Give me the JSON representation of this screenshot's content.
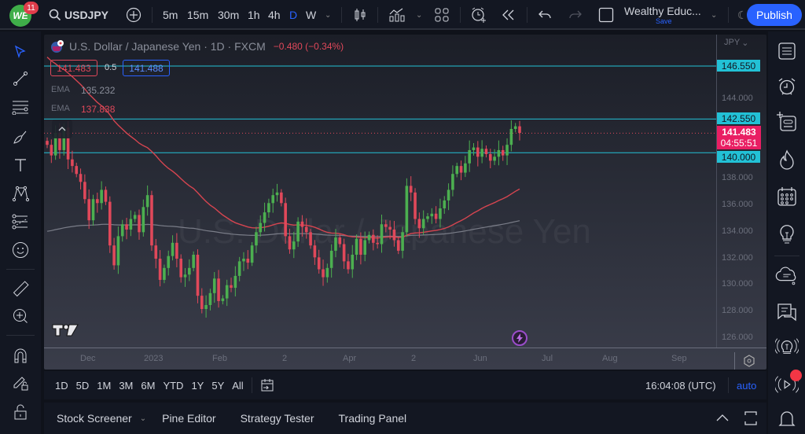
{
  "topbar": {
    "notification_count": "11",
    "logo_text": "WE",
    "symbol": "USDJPY",
    "intervals": [
      "5m",
      "15m",
      "30m",
      "1h",
      "4h",
      "D",
      "W"
    ],
    "active_interval": "D",
    "layout_name": "Wealthy Educ...",
    "save_label": "Save",
    "publish_label": "Publish"
  },
  "legend": {
    "title": "U.S. Dollar / Japanese Yen · 1D · FXCM",
    "change": "−0.480 (−0.34%)",
    "bid": "141.483",
    "spread": "0.5",
    "ask": "141.488",
    "ema1_label": "EMA",
    "ema1_value": "135.232",
    "ema2_label": "EMA",
    "ema2_value": "137.838"
  },
  "watermark": "U.S. Dollar / Japanese Yen",
  "price_axis": {
    "currency": "JPY",
    "labels": [
      "144.000",
      "138.000",
      "136.000",
      "134.000",
      "132.000",
      "130.000",
      "128.000",
      "126.000"
    ],
    "tags": {
      "level1": "146.550",
      "level2": "142.550",
      "level3": "140.000",
      "last_price": "141.483",
      "countdown": "04:55:51"
    }
  },
  "time_axis": {
    "labels": [
      "Dec",
      "2023",
      "Feb",
      "2",
      "Apr",
      "2",
      "Jun",
      "Jul",
      "Aug",
      "Sep"
    ]
  },
  "range_bar": {
    "ranges": [
      "1D",
      "5D",
      "1M",
      "3M",
      "6M",
      "YTD",
      "1Y",
      "5Y",
      "All"
    ],
    "clock": "16:04:08 (UTC)",
    "scale_mode": "auto"
  },
  "bottom_panel": {
    "tabs": [
      "Stock Screener",
      "Pine Editor",
      "Strategy Tester",
      "Trading Panel"
    ]
  },
  "colors": {
    "up": "#4caf50",
    "down": "#e0485a",
    "hline": "#22c1d6",
    "ema_fast": "#d64550",
    "ema_slow": "#7a7d88",
    "accent": "#2962ff",
    "last_price": "#e91e63"
  },
  "chart_data": {
    "type": "candlestick",
    "title": "U.S. Dollar / Japanese Yen · 1D · FXCM",
    "ylabel": "JPY",
    "ylim": [
      125.5,
      147
    ],
    "x_ticks": [
      "Dec",
      "2023",
      "Feb",
      "2",
      "Apr",
      "2",
      "Jun",
      "Jul",
      "Aug",
      "Sep"
    ],
    "horizontal_lines": [
      146.55,
      142.55,
      140.0
    ],
    "last_price": 141.483,
    "ema_values_latest": {
      "EMA_slow": 135.232,
      "EMA_fast": 137.838
    },
    "close_path_approx": [
      140.6,
      139.8,
      141.5,
      140.2,
      141.9,
      139.5,
      139.0,
      138.4,
      137.8,
      136.5,
      134.9,
      136.5,
      136.2,
      137.2,
      136.3,
      133.0,
      131.5,
      133.7,
      134.6,
      134.2,
      135.0,
      135.3,
      134.0,
      135.9,
      136.8,
      133.0,
      132.0,
      130.4,
      131.3,
      132.2,
      133.2,
      132.0,
      130.6,
      130.8,
      131.3,
      132.3,
      129.2,
      128.2,
      128.5,
      129.4,
      130.5,
      128.8,
      129.0,
      130.0,
      129.8,
      130.7,
      131.8,
      132.0,
      131.7,
      133.0,
      134.0,
      134.7,
      135.5,
      136.2,
      136.8,
      137.0,
      136.2,
      133.7,
      132.7,
      133.3,
      134.8,
      134.4,
      134.0,
      133.0,
      132.1,
      131.2,
      130.6,
      131.3,
      132.6,
      133.6,
      133.1,
      131.8,
      131.2,
      132.3,
      133.5,
      132.3,
      133.4,
      133.8,
      133.2,
      133.1,
      134.6,
      134.4,
      134.2,
      133.4,
      132.6,
      134.0,
      137.5,
      137.0,
      135.0,
      134.3,
      135.0,
      135.2,
      135.4,
      135.0,
      135.8,
      136.4,
      137.2,
      138.4,
      139.0,
      138.5,
      139.2,
      140.2,
      140.4,
      139.7,
      140.3,
      139.9,
      139.4,
      139.7,
      140.2,
      139.8,
      140.6,
      141.8,
      142.0,
      141.5
    ]
  }
}
